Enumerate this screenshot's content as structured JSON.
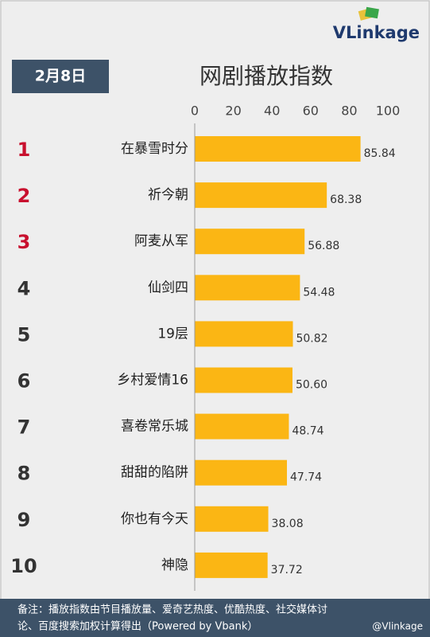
{
  "date": "2月8日",
  "logo": "VLinkage",
  "watermark": "@Vlinkage",
  "footnote": [
    "备注：播放指数由节目播放量、爱奇艺热度、优酷热度、社交媒体讨",
    "论、百度搜索加权计算得出（Powered by Vbank）"
  ],
  "chart_data": {
    "type": "bar",
    "orientation": "horizontal",
    "title": "网剧播放指数",
    "ranks": [
      "1",
      "2",
      "3",
      "4",
      "5",
      "6",
      "7",
      "8",
      "9",
      "10"
    ],
    "categories": [
      "在暴雪时分",
      "祈今朝",
      "阿麦从军",
      "仙剑四",
      "19层",
      "乡村爱情16",
      "喜卷常乐城",
      "甜甜的陷阱",
      "你也有今天",
      "神隐"
    ],
    "values": [
      85.84,
      68.38,
      56.88,
      54.48,
      50.82,
      50.6,
      48.74,
      47.74,
      38.08,
      37.72
    ],
    "value_labels": [
      "85.84",
      "68.38",
      "56.88",
      "54.48",
      "50.82",
      "50.60",
      "48.74",
      "47.74",
      "38.08",
      "37.72"
    ],
    "color": "#fbb614",
    "top_rank_color": "#c8102e",
    "rank_color": "#333333",
    "xlim": [
      0,
      100
    ],
    "xticks": [
      0,
      20,
      40,
      60,
      80,
      100
    ],
    "grid": false
  }
}
